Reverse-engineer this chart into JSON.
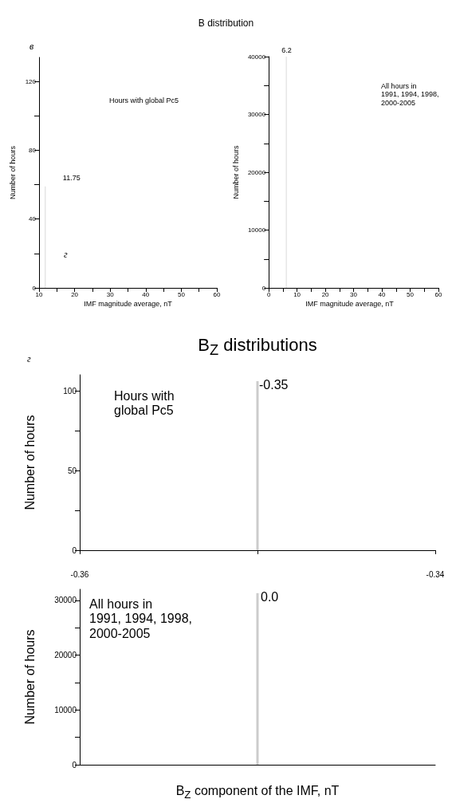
{
  "chart_data": [
    {
      "type": "bar",
      "title": "B distribution",
      "xlabel": "IMF magnitude average, nT",
      "ylabel": "Number of hours",
      "x": [
        11.75
      ],
      "values": [
        59
      ],
      "color": "#d9d9d9",
      "xlim": [
        10,
        60
      ],
      "xticks": [
        10,
        {
          "value": 15,
          "label": null
        },
        20,
        {
          "value": 25,
          "label": null
        },
        30,
        {
          "value": 35,
          "label": null
        },
        40,
        {
          "value": 45,
          "label": null
        },
        50,
        {
          "value": 55,
          "label": null
        },
        60
      ],
      "ylim": [
        0,
        134
      ],
      "yticks": [
        0,
        {
          "value": 20,
          "label": null
        },
        40,
        {
          "value": 60,
          "label": null
        },
        80,
        {
          "value": 100,
          "label": null
        },
        120
      ],
      "annotations": [
        "в",
        "Hours with global Pc5",
        "г",
        {
          "text": "11.75",
          "x": 11.75,
          "y": 59
        }
      ]
    },
    {
      "type": "bar",
      "xlabel": "IMF magnitude average, nT",
      "ylabel": "Number of hours",
      "x": [
        6.2
      ],
      "values": [
        40000
      ],
      "color": "#d9d9d9",
      "xlim": [
        0,
        60
      ],
      "xticks": [
        0,
        {
          "value": 5,
          "label": null
        },
        10,
        {
          "value": 15,
          "label": null
        },
        20,
        {
          "value": 25,
          "label": null
        },
        30,
        {
          "value": 35,
          "label": null
        },
        40,
        {
          "value": 45,
          "label": null
        },
        50,
        {
          "value": 55,
          "label": null
        },
        60
      ],
      "ylim": [
        0,
        40000
      ],
      "yticks": [
        0,
        {
          "value": 5000,
          "label": null
        },
        10000,
        {
          "value": 15000,
          "label": null
        },
        20000,
        {
          "value": 25000,
          "label": null
        },
        30000,
        {
          "value": 35000,
          "label": null
        },
        40000
      ],
      "annotations": [
        "All hours in\n1991, 1994, 1998,\n2000-2005",
        {
          "text": "6.2",
          "x": 6.2,
          "y": 40000
        }
      ]
    },
    {
      "type": "bar",
      "title": "B$_{Z}$ distributions",
      "ylabel": "Number of hours",
      "x": [
        -0.35
      ],
      "values": [
        106
      ],
      "color": "#cccccc",
      "xlim": [
        -0.36,
        -0.34
      ],
      "xticks": [
        -0.36,
        {
          "value": -0.35,
          "label": null
        },
        -0.34
      ],
      "ylim": [
        0,
        110
      ],
      "yticks": [
        0,
        {
          "value": 25,
          "label": null
        },
        50,
        {
          "value": 75,
          "label": null
        },
        100
      ],
      "annotations": [
        "г",
        "Hours with\nglobal Pc5",
        {
          "text": "-0.35",
          "x": -0.35,
          "y": 106
        }
      ]
    },
    {
      "type": "bar",
      "xlabel": "B$_{Z}$ component of the IMF, nT",
      "ylabel": "Number of hours",
      "x": [
        -0.35
      ],
      "values": [
        31300
      ],
      "color": "#cccccc",
      "xlim": [
        -0.36,
        -0.34
      ],
      "tick_labels": "y",
      "ylim": [
        0,
        32000
      ],
      "yticks": [
        0,
        {
          "value": 5000,
          "label": null
        },
        10000,
        {
          "value": 15000,
          "label": null
        },
        20000,
        {
          "value": 25000,
          "label": null
        },
        30000
      ],
      "annotations": [
        "All hours in\n1991, 1994, 1998,\n2000-2005",
        {
          "text": "0.0",
          "x": -0.35,
          "y": 31300
        }
      ]
    }
  ]
}
